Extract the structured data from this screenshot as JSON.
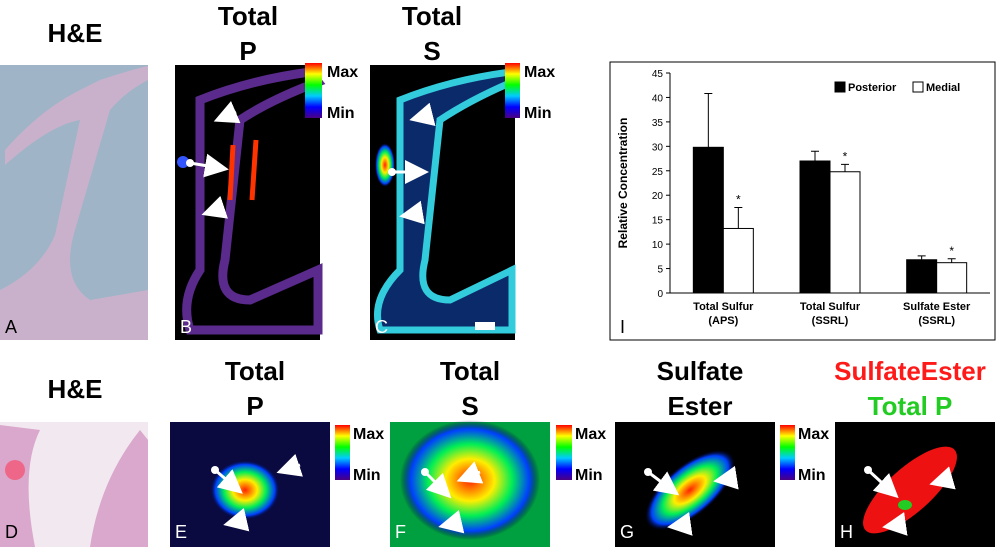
{
  "top_row": {
    "panels": [
      {
        "letter": "A",
        "title": [
          "H&E"
        ]
      },
      {
        "letter": "B",
        "title": [
          "Total",
          "P"
        ],
        "scale": [
          "Max",
          "Min"
        ]
      },
      {
        "letter": "C",
        "title": [
          "Total",
          "S"
        ],
        "scale": [
          "Max",
          "Min"
        ]
      }
    ]
  },
  "bottom_row": {
    "panels": [
      {
        "letter": "D",
        "title": [
          "H&E"
        ]
      },
      {
        "letter": "E",
        "title": [
          "Total",
          "P"
        ],
        "scale": [
          "Max",
          "Min"
        ]
      },
      {
        "letter": "F",
        "title": [
          "Total",
          "S"
        ],
        "scale": [
          "Max",
          "Min"
        ]
      },
      {
        "letter": "G",
        "title": [
          "Sulfate",
          "Ester"
        ],
        "scale": [
          "Max",
          "Min"
        ]
      },
      {
        "letter": "H",
        "title": [
          "SulfateEster",
          "Total P"
        ]
      }
    ]
  },
  "chart_data": {
    "type": "bar",
    "panel_letter": "I",
    "y_label": "Relative Concentration",
    "categories": [
      [
        "Total Sulfur",
        "(APS)"
      ],
      [
        "Total Sulfur",
        "(SSRL)"
      ],
      [
        "Sulfate Ester",
        "(SSRL)"
      ]
    ],
    "series": [
      {
        "name": "Posterior",
        "color": "#000000",
        "values": [
          29.8,
          27,
          6.8
        ],
        "errors": [
          11,
          2,
          0.8
        ]
      },
      {
        "name": "Medial",
        "color": "#ffffff",
        "values": [
          13.2,
          24.8,
          6.2
        ],
        "errors": [
          4.3,
          1.5,
          0.8
        ],
        "annotations": [
          "*",
          "*",
          "*"
        ]
      }
    ],
    "ylim": [
      0,
      45
    ],
    "yticks": [
      0,
      5,
      10,
      15,
      20,
      25,
      30,
      35,
      40,
      45
    ],
    "legend": "top-right"
  }
}
